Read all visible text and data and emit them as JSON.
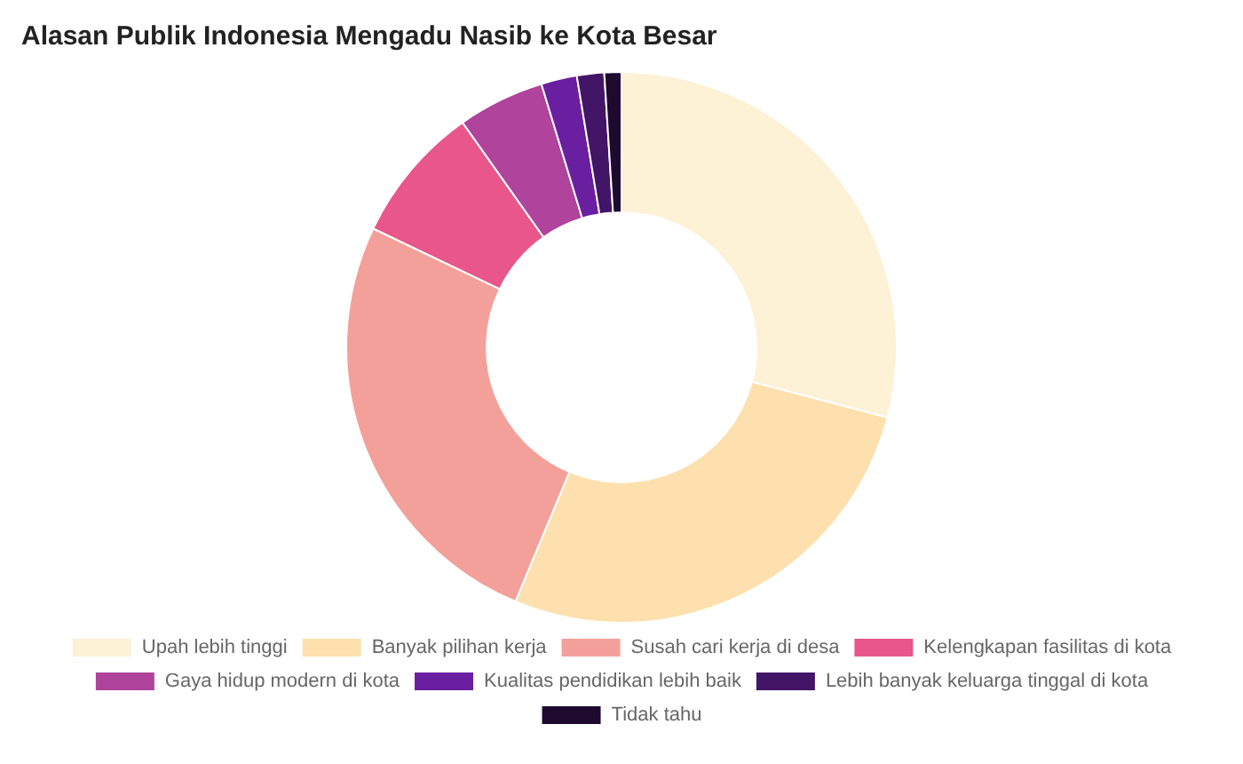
{
  "chart_data": {
    "type": "donut",
    "title": "Alasan Publik Indonesia Mengadu Nasib ke Kota Besar",
    "categories": [
      "Upah lebih tinggi",
      "Banyak pilihan kerja",
      "Susah cari kerja di desa",
      "Kelengkapan fasilitas di kota",
      "Gaya hidup modern di kota",
      "Kualitas pendidikan lebih baik",
      "Lebih banyak keluarga tinggal di kota",
      "Tidak tahu"
    ],
    "values": [
      29.1,
      27.2,
      25.8,
      8.1,
      5.1,
      2.1,
      1.6,
      1.0
    ],
    "colors": [
      "#fdf1d6",
      "#fde0ad",
      "#f4a09a",
      "#e8568a",
      "#b0439b",
      "#6a1fa0",
      "#431567",
      "#1e0a2e"
    ],
    "legend": "bottom"
  }
}
